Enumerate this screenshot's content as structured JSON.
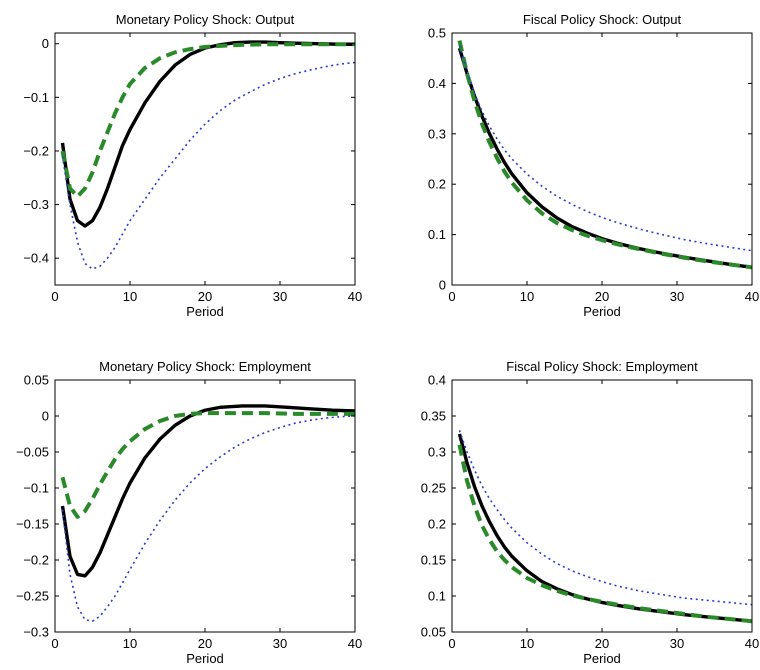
{
  "chart_data": [
    {
      "type": "line",
      "title": "Monetary Policy Shock: Output",
      "xlabel": "Period",
      "ylabel": "",
      "xlim": [
        0,
        40
      ],
      "ylim": [
        -0.45,
        0.02
      ],
      "xticks": [
        0,
        10,
        20,
        30,
        40
      ],
      "xtick_labels": [
        "0",
        "10",
        "20",
        "30",
        "40"
      ],
      "yticks": [
        0,
        -0.1,
        -0.2,
        -0.3,
        -0.4
      ],
      "ytick_labels": [
        "0",
        "−0.1",
        "−0.2",
        "−0.3",
        "−0.4"
      ],
      "grid": false,
      "legend": "none",
      "series": [
        {
          "color": "#000000",
          "style": "solid",
          "x": [
            1,
            2,
            3,
            4,
            5,
            6,
            7,
            8,
            9,
            10,
            12,
            14,
            16,
            18,
            20,
            22,
            24,
            26,
            28,
            30,
            32,
            35,
            38,
            40
          ],
          "y": [
            -0.185,
            -0.29,
            -0.33,
            -0.34,
            -0.33,
            -0.305,
            -0.27,
            -0.23,
            -0.19,
            -0.16,
            -0.11,
            -0.07,
            -0.04,
            -0.02,
            -0.008,
            -0.002,
            0.002,
            0.003,
            0.003,
            0.002,
            0.001,
            0.0,
            -0.001,
            -0.001
          ]
        },
        {
          "color": "#2a8a2a",
          "style": "dashed",
          "x": [
            1,
            2,
            3,
            4,
            5,
            6,
            7,
            8,
            9,
            10,
            12,
            14,
            16,
            18,
            20,
            22,
            25,
            28,
            32,
            36,
            40
          ],
          "y": [
            -0.2,
            -0.27,
            -0.285,
            -0.27,
            -0.24,
            -0.2,
            -0.165,
            -0.13,
            -0.1,
            -0.075,
            -0.045,
            -0.027,
            -0.016,
            -0.01,
            -0.006,
            -0.004,
            -0.002,
            -0.001,
            -0.001,
            -0.001,
            -0.001
          ]
        },
        {
          "color": "#2a3acc",
          "style": "dotted",
          "x": [
            1,
            2,
            3,
            4,
            5,
            6,
            7,
            8,
            9,
            10,
            12,
            14,
            16,
            18,
            20,
            22,
            24,
            26,
            28,
            30,
            32,
            34,
            36,
            38,
            40
          ],
          "y": [
            -0.21,
            -0.3,
            -0.37,
            -0.41,
            -0.42,
            -0.415,
            -0.4,
            -0.38,
            -0.355,
            -0.33,
            -0.29,
            -0.25,
            -0.215,
            -0.18,
            -0.15,
            -0.125,
            -0.105,
            -0.09,
            -0.076,
            -0.065,
            -0.056,
            -0.049,
            -0.043,
            -0.038,
            -0.035
          ]
        }
      ]
    },
    {
      "type": "line",
      "title": "Fiscal Policy Shock: Output",
      "xlabel": "Period",
      "ylabel": "",
      "xlim": [
        0,
        40
      ],
      "ylim": [
        0,
        0.5
      ],
      "xticks": [
        0,
        10,
        20,
        30,
        40
      ],
      "xtick_labels": [
        "0",
        "10",
        "20",
        "30",
        "40"
      ],
      "yticks": [
        0,
        0.1,
        0.2,
        0.3,
        0.4,
        0.5
      ],
      "ytick_labels": [
        "0",
        "0.1",
        "0.2",
        "0.3",
        "0.4",
        "0.5"
      ],
      "grid": false,
      "legend": "none",
      "series": [
        {
          "color": "#000000",
          "style": "solid",
          "x": [
            1,
            2,
            3,
            4,
            5,
            6,
            7,
            8,
            10,
            12,
            14,
            16,
            18,
            20,
            22,
            25,
            28,
            31,
            34,
            37,
            40
          ],
          "y": [
            0.47,
            0.42,
            0.375,
            0.335,
            0.3,
            0.27,
            0.243,
            0.22,
            0.183,
            0.155,
            0.133,
            0.116,
            0.103,
            0.092,
            0.083,
            0.072,
            0.063,
            0.055,
            0.048,
            0.041,
            0.035
          ]
        },
        {
          "color": "#2a8a2a",
          "style": "dashed",
          "x": [
            1,
            2,
            3,
            4,
            5,
            6,
            7,
            8,
            10,
            12,
            14,
            16,
            18,
            20,
            22,
            25,
            28,
            31,
            34,
            37,
            40
          ],
          "y": [
            0.485,
            0.42,
            0.365,
            0.32,
            0.283,
            0.252,
            0.225,
            0.203,
            0.168,
            0.142,
            0.123,
            0.109,
            0.098,
            0.089,
            0.081,
            0.071,
            0.062,
            0.054,
            0.047,
            0.041,
            0.035
          ]
        },
        {
          "color": "#2a3acc",
          "style": "dotted",
          "x": [
            1,
            2,
            3,
            4,
            5,
            6,
            7,
            8,
            10,
            12,
            14,
            16,
            18,
            20,
            22,
            25,
            28,
            31,
            34,
            37,
            40
          ],
          "y": [
            0.475,
            0.425,
            0.38,
            0.345,
            0.315,
            0.29,
            0.268,
            0.25,
            0.22,
            0.196,
            0.176,
            0.16,
            0.146,
            0.134,
            0.124,
            0.111,
            0.1,
            0.09,
            0.082,
            0.075,
            0.068
          ]
        }
      ]
    },
    {
      "type": "line",
      "title": "Monetary Policy Shock: Employment",
      "xlabel": "Period",
      "ylabel": "",
      "xlim": [
        0,
        40
      ],
      "ylim": [
        -0.3,
        0.05
      ],
      "xticks": [
        0,
        10,
        20,
        30,
        40
      ],
      "xtick_labels": [
        "0",
        "10",
        "20",
        "30",
        "40"
      ],
      "yticks": [
        0.05,
        0,
        -0.05,
        -0.1,
        -0.15,
        -0.2,
        -0.25,
        -0.3
      ],
      "ytick_labels": [
        "0.05",
        "0",
        "−0.05",
        "−0.1",
        "−0.15",
        "−0.2",
        "−0.25",
        "−0.3"
      ],
      "grid": false,
      "legend": "none",
      "series": [
        {
          "color": "#000000",
          "style": "solid",
          "x": [
            1,
            2,
            3,
            4,
            5,
            6,
            7,
            8,
            9,
            10,
            12,
            14,
            16,
            18,
            20,
            22,
            25,
            28,
            31,
            34,
            37,
            40
          ],
          "y": [
            -0.125,
            -0.195,
            -0.22,
            -0.222,
            -0.21,
            -0.19,
            -0.165,
            -0.14,
            -0.115,
            -0.093,
            -0.058,
            -0.032,
            -0.013,
            0.0,
            0.008,
            0.012,
            0.014,
            0.014,
            0.012,
            0.01,
            0.008,
            0.007
          ]
        },
        {
          "color": "#2a8a2a",
          "style": "dashed",
          "x": [
            1,
            2,
            3,
            4,
            5,
            6,
            7,
            8,
            9,
            10,
            12,
            14,
            16,
            18,
            20,
            24,
            28,
            32,
            36,
            40
          ],
          "y": [
            -0.085,
            -0.125,
            -0.14,
            -0.132,
            -0.115,
            -0.095,
            -0.077,
            -0.06,
            -0.046,
            -0.035,
            -0.018,
            -0.007,
            0.0,
            0.003,
            0.004,
            0.004,
            0.004,
            0.003,
            0.003,
            0.003
          ]
        },
        {
          "color": "#2a3acc",
          "style": "dotted",
          "x": [
            1,
            2,
            3,
            4,
            5,
            6,
            7,
            8,
            9,
            10,
            12,
            14,
            16,
            18,
            20,
            22,
            24,
            26,
            28,
            30,
            32,
            34,
            36,
            38,
            40
          ],
          "y": [
            -0.13,
            -0.22,
            -0.265,
            -0.283,
            -0.285,
            -0.278,
            -0.265,
            -0.25,
            -0.232,
            -0.213,
            -0.177,
            -0.145,
            -0.117,
            -0.093,
            -0.073,
            -0.057,
            -0.043,
            -0.032,
            -0.023,
            -0.016,
            -0.01,
            -0.006,
            -0.003,
            -0.001,
            0.0
          ]
        }
      ]
    },
    {
      "type": "line",
      "title": "Fiscal Policy Shock: Employment",
      "xlabel": "Period",
      "ylabel": "",
      "xlim": [
        0,
        40
      ],
      "ylim": [
        0.05,
        0.4
      ],
      "xticks": [
        0,
        10,
        20,
        30,
        40
      ],
      "xtick_labels": [
        "0",
        "10",
        "20",
        "30",
        "40"
      ],
      "yticks": [
        0.05,
        0.1,
        0.15,
        0.2,
        0.25,
        0.3,
        0.35,
        0.4
      ],
      "ytick_labels": [
        "0.05",
        "0.1",
        "0.15",
        "0.2",
        "0.25",
        "0.3",
        "0.35",
        "0.4"
      ],
      "grid": false,
      "legend": "none",
      "series": [
        {
          "color": "#000000",
          "style": "solid",
          "x": [
            1,
            2,
            3,
            4,
            5,
            6,
            7,
            8,
            10,
            12,
            14,
            16,
            18,
            20,
            22,
            25,
            28,
            31,
            34,
            37,
            40
          ],
          "y": [
            0.325,
            0.285,
            0.252,
            0.225,
            0.203,
            0.184,
            0.168,
            0.155,
            0.135,
            0.12,
            0.11,
            0.102,
            0.096,
            0.091,
            0.087,
            0.082,
            0.078,
            0.074,
            0.071,
            0.068,
            0.065
          ]
        },
        {
          "color": "#2a8a2a",
          "style": "dashed",
          "x": [
            1,
            2,
            3,
            4,
            5,
            6,
            7,
            8,
            10,
            12,
            14,
            16,
            18,
            20,
            22,
            25,
            28,
            31,
            34,
            37,
            40
          ],
          "y": [
            0.31,
            0.26,
            0.225,
            0.198,
            0.178,
            0.162,
            0.15,
            0.14,
            0.125,
            0.115,
            0.107,
            0.101,
            0.096,
            0.092,
            0.088,
            0.083,
            0.079,
            0.075,
            0.071,
            0.068,
            0.065
          ]
        },
        {
          "color": "#2a3acc",
          "style": "dotted",
          "x": [
            1,
            2,
            3,
            4,
            5,
            6,
            7,
            8,
            10,
            12,
            14,
            16,
            18,
            20,
            22,
            25,
            28,
            31,
            34,
            37,
            40
          ],
          "y": [
            0.33,
            0.3,
            0.275,
            0.253,
            0.235,
            0.22,
            0.206,
            0.194,
            0.174,
            0.158,
            0.145,
            0.135,
            0.127,
            0.12,
            0.114,
            0.107,
            0.102,
            0.097,
            0.094,
            0.091,
            0.088
          ]
        }
      ]
    }
  ]
}
